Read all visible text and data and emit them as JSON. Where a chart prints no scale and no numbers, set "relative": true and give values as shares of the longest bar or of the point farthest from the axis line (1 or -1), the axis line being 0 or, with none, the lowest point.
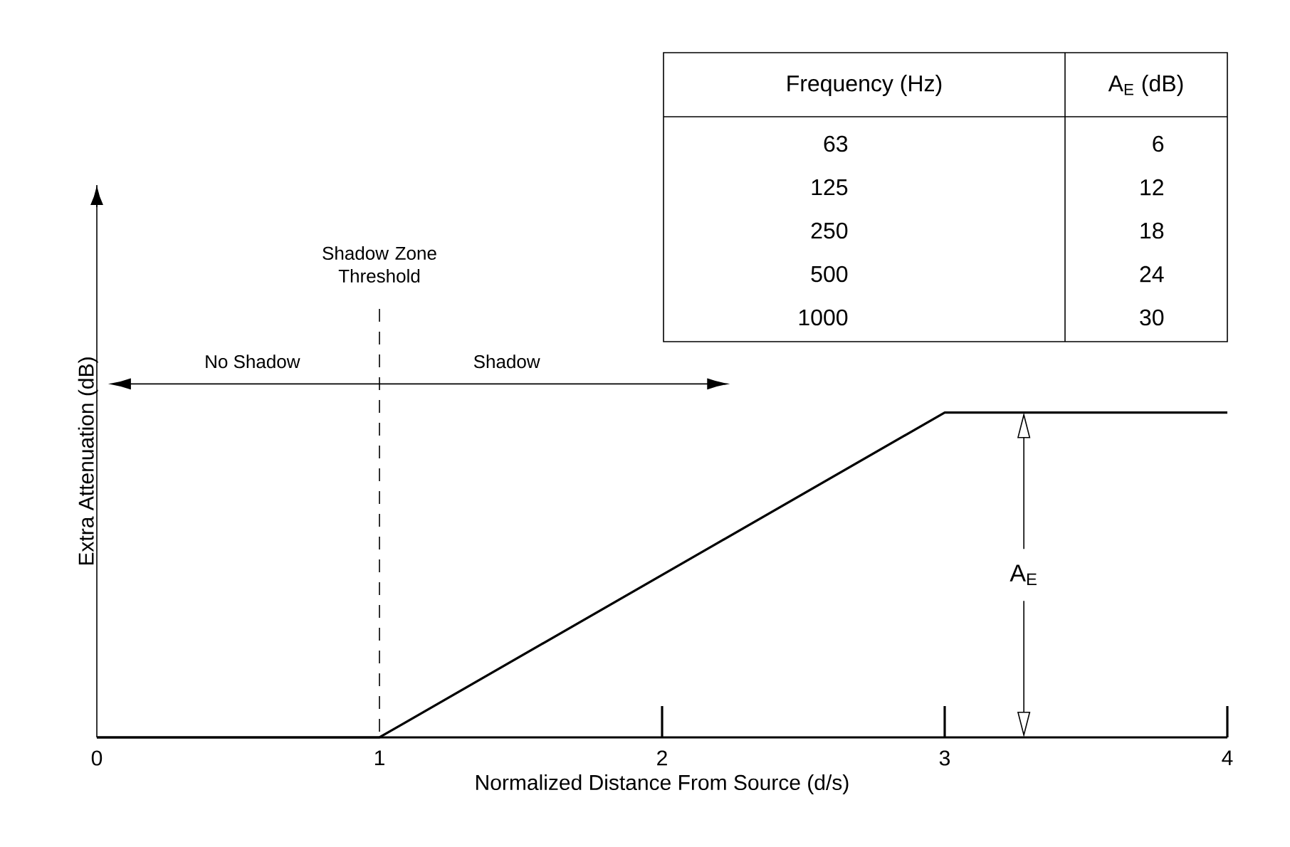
{
  "chart_data": {
    "type": "line",
    "relative": true,
    "xlabel": "Normalized Distance From Source (d/s)",
    "ylabel": "Extra Attenuation (dB)",
    "x": [
      0,
      1,
      3,
      4
    ],
    "values": [
      0,
      0,
      1,
      1
    ],
    "color": "#000000",
    "xlim": [
      0,
      4
    ],
    "xticks": [
      0,
      1,
      2,
      3,
      4
    ],
    "ref_lines": [
      {
        "axis": "x",
        "value": 1,
        "label": "Shadow Zone Threshold",
        "line_style": "dashed"
      }
    ],
    "annotations": [
      "No Shadow",
      "Shadow",
      "A$_{E}$",
      "Frequency (Hz)",
      "A$_{E}$ (dB)",
      "63",
      "6",
      "125",
      "12",
      "250",
      "18",
      "500",
      "24",
      "1000",
      "30"
    ]
  }
}
